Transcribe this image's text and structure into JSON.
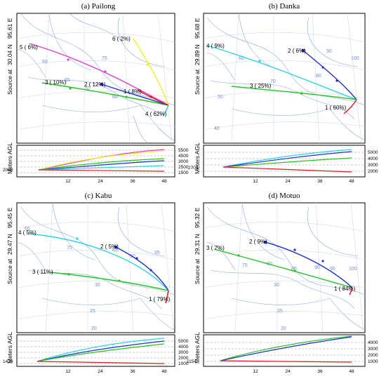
{
  "axis_label": "Meters AGL",
  "source_label": "Source",
  "x_ticks": [
    "12",
    "24",
    "36",
    "48"
  ],
  "colors": {
    "red": "#e41a1c",
    "blue": "#1e2fd0",
    "green": "#22c522",
    "cyan": "#2ad4e6",
    "magenta": "#e03ad6",
    "yellow": "#f3f21b",
    "grid": "#6f8fc7",
    "dash": "#9a9a9a"
  },
  "panels": [
    {
      "id": "a",
      "title": "(a) Pailong",
      "lat": "30.04 N",
      "lon": "95.61 E",
      "at": "at",
      "src_height": "2058",
      "right_ticks": [
        "5500",
        "4500",
        "3000",
        "2500",
        "1500"
      ],
      "grid_labels": [
        "60",
        "65",
        "75",
        "70",
        "80"
      ],
      "clusters": [
        {
          "label": "5 ( 6%)",
          "color": "magenta"
        },
        {
          "label": "6 ( 2%)",
          "color": "yellow"
        },
        {
          "label": "3 ( 10%)",
          "color": "green"
        },
        {
          "label": "2 ( 12%)",
          "color": "blue"
        },
        {
          "label": "1 ( 8%)",
          "color": "red"
        },
        {
          "label": "4 ( 62%)",
          "color": "cyan"
        }
      ]
    },
    {
      "id": "b",
      "title": "(b) Danka",
      "lat": "29.89 N",
      "lon": "95.68 E",
      "at": "at",
      "src_height": "2701",
      "right_ticks": [
        "5000",
        "4000",
        "3000",
        "2000"
      ],
      "grid_labels": [
        "60",
        "70",
        "80",
        "90",
        "100",
        "40",
        "50"
      ],
      "clusters": [
        {
          "label": "4 ( 9%)",
          "color": "cyan"
        },
        {
          "label": "2 ( 6%)",
          "color": "blue"
        },
        {
          "label": "3 ( 25%)",
          "color": "green"
        },
        {
          "label": "1 ( 60%)",
          "color": "red"
        }
      ]
    },
    {
      "id": "c",
      "title": "(c) Kabu",
      "lat": "29.47 N",
      "lon": "95.45 E",
      "at": "at",
      "src_height": "1439",
      "right_ticks": [
        "5000",
        "4000",
        "3000",
        "2000",
        "1000"
      ],
      "grid_labels": [
        "65",
        "75",
        "85",
        "90",
        "95",
        "30",
        "25",
        "20"
      ],
      "clusters": [
        {
          "label": "4 ( 5%)",
          "color": "cyan"
        },
        {
          "label": "2 ( 5%)",
          "color": "blue"
        },
        {
          "label": "3 ( 11%)",
          "color": "green"
        },
        {
          "label": "1 ( 79%)",
          "color": "red"
        }
      ]
    },
    {
      "id": "d",
      "title": "(d) Motuo",
      "lat": "29.31 N",
      "lon": "95.32 E",
      "at": "at",
      "src_height": "1154",
      "right_ticks": [
        "4000",
        "3000",
        "2000",
        "1000"
      ],
      "grid_labels": [
        "75",
        "80",
        "85",
        "90",
        "95",
        "100",
        "30",
        "25",
        "20"
      ],
      "clusters": [
        {
          "label": "3 ( 7%)",
          "color": "green"
        },
        {
          "label": "2 ( 9%)",
          "color": "blue"
        },
        {
          "label": "1 ( 84%)",
          "color": "red"
        }
      ]
    }
  ]
}
